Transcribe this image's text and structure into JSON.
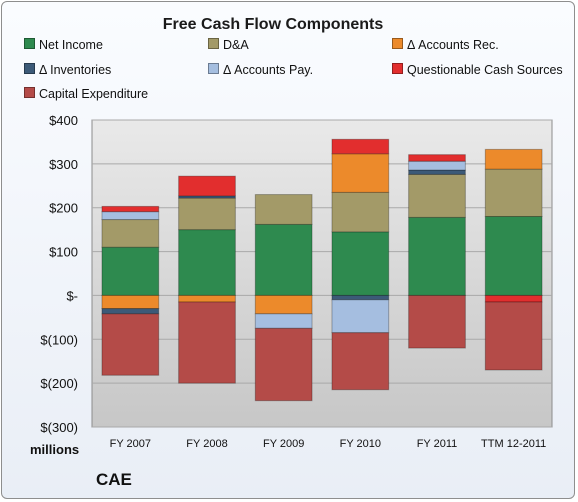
{
  "chart_data": {
    "type": "bar",
    "stacked": true,
    "title": "Free Cash Flow Components",
    "categories": [
      "FY 2007",
      "FY 2008",
      "FY 2009",
      "FY 2010",
      "FY 2011",
      "TTM 12-2011"
    ],
    "y_tick_labels": [
      "$(300)",
      "$(200)",
      "$(100)",
      "$-",
      "$100",
      "$200",
      "$300",
      "$400"
    ],
    "y_ticks": [
      -300,
      -200,
      -100,
      0,
      100,
      200,
      300,
      400
    ],
    "ylim": [
      -300,
      400
    ],
    "ylabel": "",
    "units_label": "millions",
    "grid": true,
    "legend_position": "top",
    "series": [
      {
        "name": "Net Income",
        "color": "#2e8a4f",
        "values": [
          110,
          150,
          162,
          145,
          178,
          180
        ]
      },
      {
        "name": "D&A",
        "color": "#a39a68",
        "values": [
          63,
          72,
          68,
          90,
          98,
          108
        ]
      },
      {
        "name": "Δ Accounts Rec.",
        "color": "#ec8a2b",
        "values": [
          -30,
          -15,
          -42,
          88,
          0,
          45
        ]
      },
      {
        "name": "Δ Inventories",
        "color": "#3c5a78",
        "values": [
          -12,
          5,
          0,
          -10,
          10,
          0
        ]
      },
      {
        "name": "Δ Accounts Pay.",
        "color": "#a5bee0",
        "values": [
          18,
          0,
          -33,
          -75,
          20,
          0
        ]
      },
      {
        "name": "Questionable Cash Sources",
        "color": "#e22e2e",
        "values": [
          12,
          45,
          0,
          33,
          15,
          -15
        ]
      },
      {
        "name": "Capital Expenditure",
        "color": "#b44b48",
        "values": [
          -140,
          -185,
          -165,
          -130,
          -120,
          -155
        ]
      }
    ]
  },
  "footer": {
    "units": "millions",
    "company": "CAE"
  }
}
